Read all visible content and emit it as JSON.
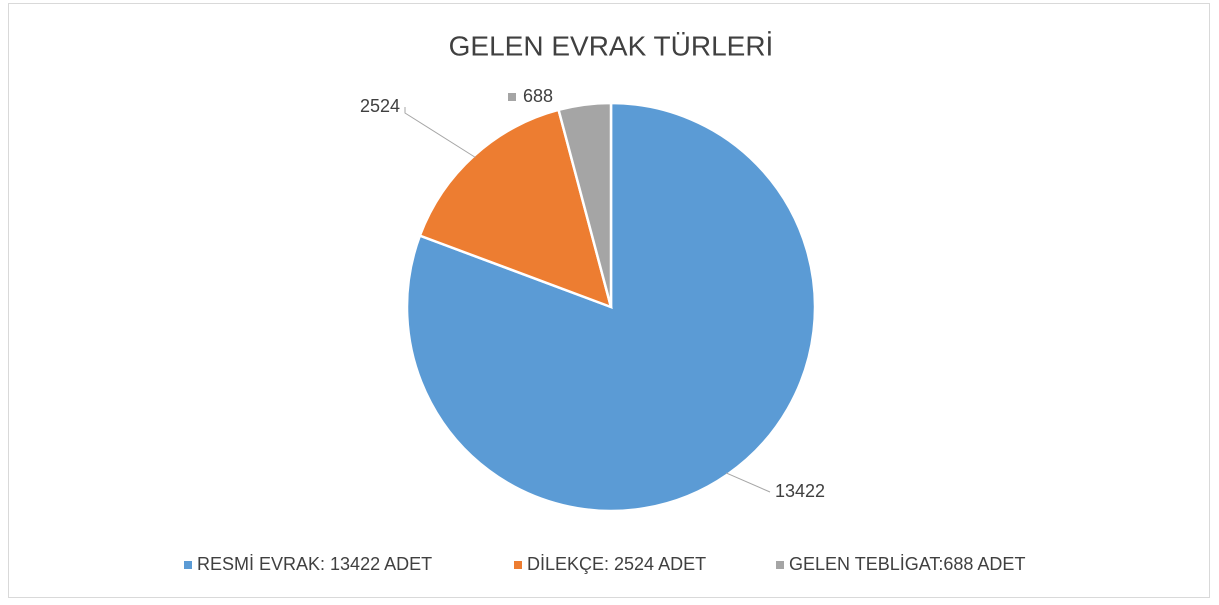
{
  "chart_data": {
    "type": "pie",
    "title": "GELEN EVRAK TÜRLERİ",
    "categories": [
      "RESMİ EVRAK: 13422 ADET",
      "DİLEKÇE: 2524 ADET",
      "GELEN TEBLİGAT:688 ADET"
    ],
    "values": [
      13422,
      2524,
      688
    ],
    "colors": [
      "#5b9bd5",
      "#ed7d31",
      "#a5a5a5"
    ],
    "legend": "bottom"
  }
}
